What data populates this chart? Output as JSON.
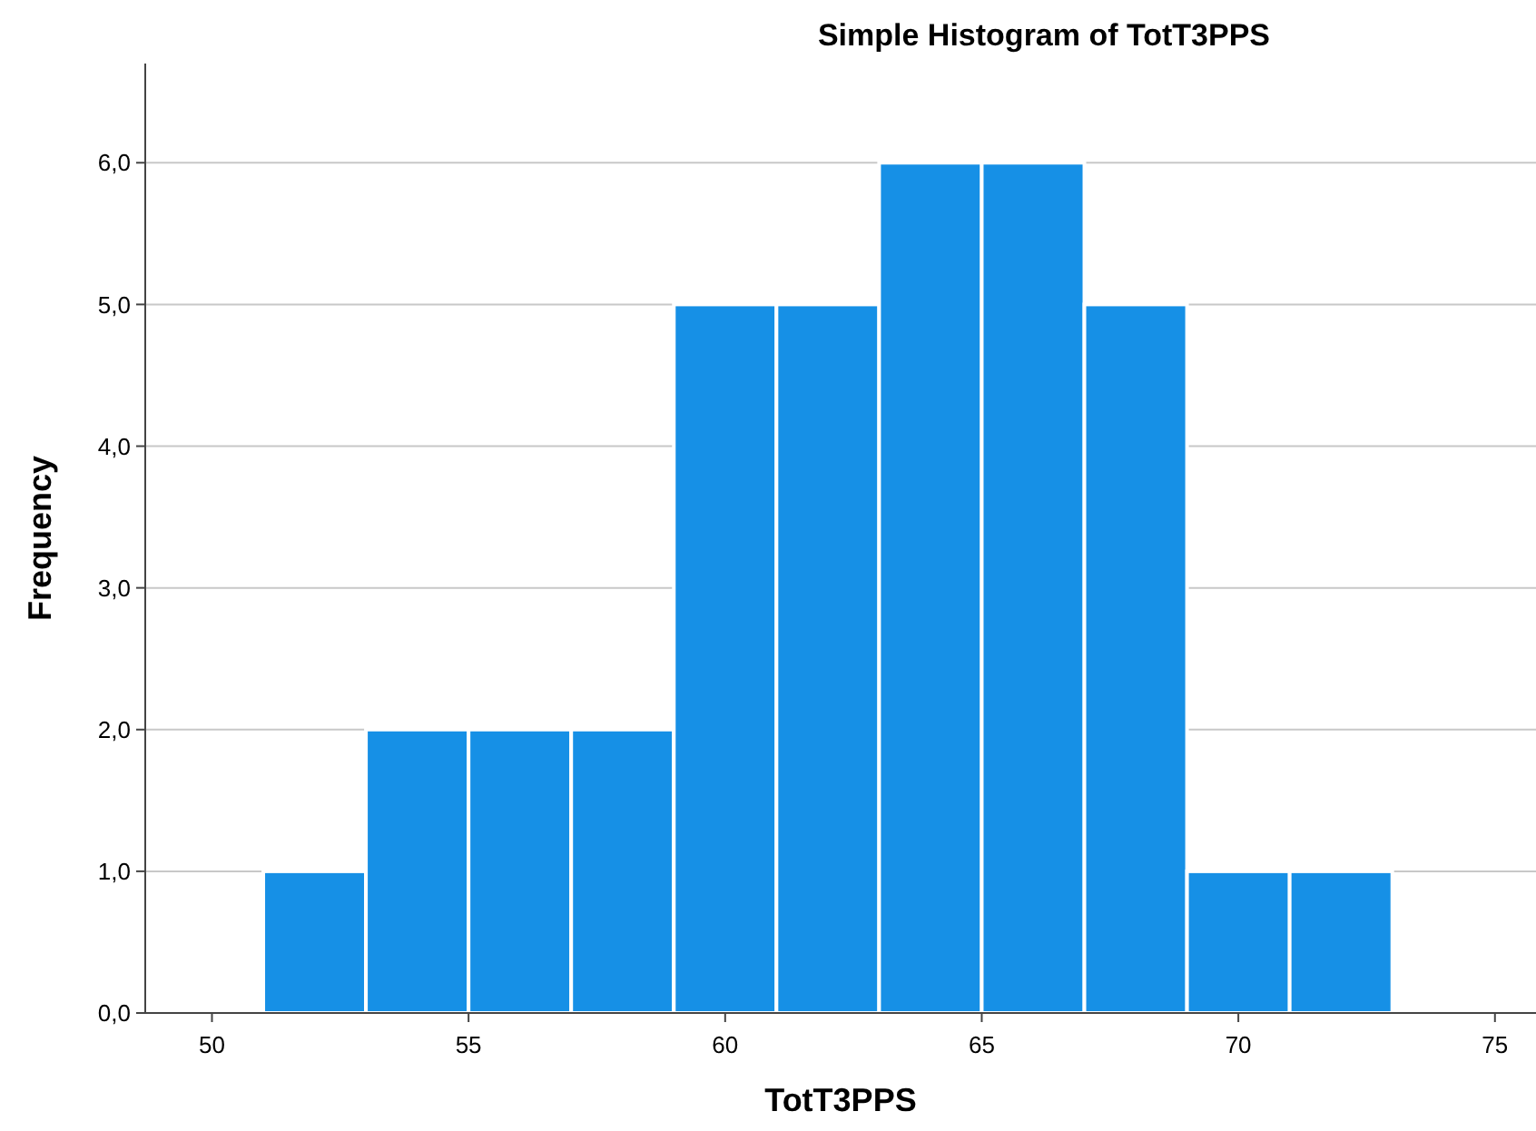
{
  "chart_data": {
    "type": "histogram",
    "title": "Simple Histogram of TotT3PPS",
    "xlabel": "TotT3PPS",
    "ylabel": "Frequency",
    "bins": [
      51,
      53,
      55,
      57,
      59,
      61,
      63,
      65,
      67,
      69,
      71,
      73
    ],
    "values": [
      1,
      2,
      2,
      2,
      5,
      5,
      6,
      6,
      5,
      1,
      1
    ],
    "color": "#1690e6",
    "xlim": [
      48.7,
      75.8
    ],
    "xticks": [
      50,
      55,
      60,
      65,
      70,
      75
    ],
    "ylim": [
      0,
      6.7
    ],
    "yticks": [
      {
        "value": 0,
        "label": "0,0"
      },
      {
        "value": 1,
        "label": "1,0"
      },
      {
        "value": 2,
        "label": "2,0"
      },
      {
        "value": 3,
        "label": "3,0"
      },
      {
        "value": 4,
        "label": "4,0"
      },
      {
        "value": 5,
        "label": "5,0"
      },
      {
        "value": 6,
        "label": "6,0"
      }
    ],
    "grid": "y"
  }
}
